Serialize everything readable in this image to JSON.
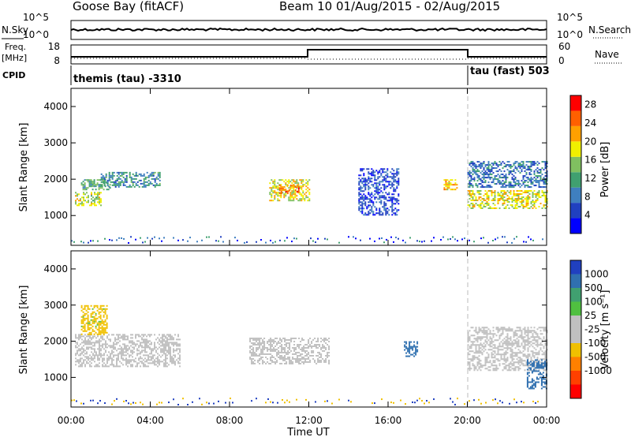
{
  "header": {
    "station": "Goose Bay (fitACF)",
    "beam_date": "Beam 10 01/Aug/2015 - 02/Aug/2015"
  },
  "strip_labels": {
    "nsky": "N.Sky",
    "nsearch": "N.Search",
    "freq_line1": "Freq.",
    "freq_line2": "[MHz]",
    "nave": "Nave",
    "cpid": "CPID"
  },
  "noise_strip": {
    "left_ticks": [
      "10^5",
      "10^0"
    ],
    "right_ticks": [
      "10^5",
      "10^0"
    ]
  },
  "freq_strip": {
    "left_ticks": [
      "18",
      "8"
    ],
    "right_ticks": [
      "60",
      "0"
    ]
  },
  "cpid_strip": {
    "segments": [
      {
        "label": "themis (tau) -3310",
        "start_hour": 0,
        "end_hour": 20
      },
      {
        "label": "tau (fast) 503",
        "start_hour": 20,
        "end_hour": 24
      }
    ]
  },
  "colors": {
    "power_scale": [
      "#0000ff",
      "#2040c0",
      "#3f7fbf",
      "#40a070",
      "#80c060",
      "#f0f000",
      "#ffa000",
      "#ff6000",
      "#ff0000"
    ],
    "velocity_scale": [
      "#2040c0",
      "#3070b0",
      "#40a070",
      "#50c040",
      "#c0c0c0",
      "#c0c0c0",
      "#f0c000",
      "#ff8000",
      "#ff4000",
      "#ff0000"
    ],
    "ground_scatter": "#c0c0c0"
  },
  "chart_data": [
    {
      "type": "heatmap",
      "name": "power",
      "ylabel": "Slant Range [km]",
      "ylim": [
        180,
        4500
      ],
      "yticks": [
        "1000",
        "2000",
        "3000",
        "4000"
      ],
      "xlim": [
        0,
        24
      ],
      "colorbar": {
        "label": "Power [dB]",
        "ticks": [
          "4",
          "8",
          "12",
          "16",
          "20",
          "24",
          "28"
        ],
        "range": [
          0,
          30
        ]
      },
      "regions": [
        {
          "t": [
            0.2,
            1.5
          ],
          "r": [
            1300,
            1650
          ],
          "level": 17
        },
        {
          "t": [
            0.5,
            2.0
          ],
          "r": [
            1700,
            2000
          ],
          "level": 12
        },
        {
          "t": [
            1.5,
            4.5
          ],
          "r": [
            1800,
            2200
          ],
          "level": 10
        },
        {
          "t": [
            10.0,
            12.0
          ],
          "r": [
            1400,
            2000
          ],
          "level": 18
        },
        {
          "t": [
            10.5,
            11.5
          ],
          "r": [
            1600,
            1850
          ],
          "level": 24
        },
        {
          "t": [
            14.5,
            16.5
          ],
          "r": [
            1000,
            2300
          ],
          "level": 5
        },
        {
          "t": [
            18.8,
            19.5
          ],
          "r": [
            1700,
            2000
          ],
          "level": 20
        },
        {
          "t": [
            20.0,
            24.0
          ],
          "r": [
            1200,
            1700
          ],
          "level": 18
        },
        {
          "t": [
            20.0,
            24.0
          ],
          "r": [
            1800,
            2500
          ],
          "level": 8
        }
      ]
    },
    {
      "type": "heatmap",
      "name": "velocity",
      "ylabel": "Slant Range [km]",
      "xlabel": "Time UT",
      "ylim": [
        180,
        4500
      ],
      "yticks": [
        "1000",
        "2000",
        "3000",
        "4000"
      ],
      "xlim": [
        0,
        24
      ],
      "xticks": [
        "00:00",
        "04:00",
        "08:00",
        "12:00",
        "16:00",
        "20:00",
        "00:00"
      ],
      "colorbar": {
        "label": "Velocity [m s⁻¹]",
        "ticks": [
          "1000",
          "500",
          "100",
          "25",
          "-25",
          "-100",
          "-500",
          "-1000"
        ]
      },
      "regions": [
        {
          "t": [
            0.2,
            5.5
          ],
          "r": [
            1300,
            2200
          ],
          "velocity": 0
        },
        {
          "t": [
            9.0,
            13.0
          ],
          "r": [
            1400,
            2100
          ],
          "velocity": 0
        },
        {
          "t": [
            20.0,
            24.0
          ],
          "r": [
            1200,
            2400
          ],
          "velocity": 0
        },
        {
          "t": [
            16.8,
            17.5
          ],
          "r": [
            1600,
            2000
          ],
          "velocity": 300
        },
        {
          "t": [
            23.0,
            24.0
          ],
          "r": [
            700,
            1500
          ],
          "velocity": 150
        },
        {
          "t": [
            0.5,
            1.8
          ],
          "r": [
            2200,
            3000
          ],
          "velocity": -60
        }
      ]
    }
  ]
}
